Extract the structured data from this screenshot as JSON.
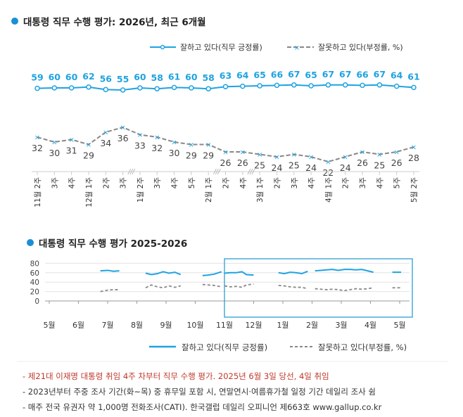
{
  "colors": {
    "approve": "#1fa3e0",
    "disapprove": "#888888",
    "bullet": "#1a8fd6",
    "note_red": "#c0392b",
    "box": "#2b9fd6"
  },
  "chart_data": [
    {
      "type": "line",
      "title": "대통령 직무 수행 평가: 2026년, 최근 6개월",
      "categories": [
        "11월 2주",
        "3주",
        "4주",
        "12월 1주",
        "2주",
        "3주",
        "1월 2주",
        "3주",
        "4주",
        "5주",
        "2월 1주",
        "2주",
        "4주",
        "3월 1주",
        "2주",
        "3주",
        "4주",
        "4월 1주",
        "2주",
        "3주",
        "4주",
        "5주",
        "5월 2주"
      ],
      "break_after_index": [
        5,
        10,
        12
      ],
      "series": [
        {
          "name": "잘하고 있다(직무 긍정률)",
          "values": [
            59,
            60,
            60,
            62,
            56,
            55,
            60,
            58,
            61,
            60,
            58,
            63,
            64,
            65,
            66,
            67,
            65,
            67,
            67,
            66,
            67,
            64,
            61
          ]
        },
        {
          "name": "잘못하고 있다(부정률, %)",
          "values": [
            32,
            30,
            31,
            29,
            34,
            36,
            33,
            32,
            30,
            29,
            29,
            26,
            26,
            25,
            24,
            25,
            24,
            22,
            24,
            26,
            25,
            26,
            28
          ]
        }
      ],
      "legend": {
        "approve_label": "잘하고 있다(직무 긍정률)",
        "disapprove_label": "잘못하고 있다(부정률, %)",
        "position": "top-right"
      }
    },
    {
      "type": "line",
      "title": "대통령 직무 수행 평가 2025-2026",
      "x_tick_labels": [
        "5월",
        "6월",
        "7월",
        "8월",
        "9월",
        "10월",
        "11월",
        "12월",
        "1월",
        "2월",
        "3월",
        "4월",
        "5월"
      ],
      "y_tick_labels": [
        "0",
        "20",
        "40",
        "60",
        "80"
      ],
      "ylim": [
        0,
        80
      ],
      "grid": true,
      "highlight_box": "11월 - 5월",
      "series": [
        {
          "name": "잘하고 있다(직무 긍정률)",
          "segments": [
            [
              [
                1.75,
                64
              ],
              [
                2.0,
                65
              ],
              [
                2.2,
                63
              ],
              [
                2.4,
                64
              ]
            ],
            [
              [
                3.3,
                59
              ],
              [
                3.5,
                56
              ],
              [
                3.7,
                58
              ],
              [
                3.9,
                62
              ],
              [
                4.1,
                59
              ],
              [
                4.3,
                61
              ],
              [
                4.5,
                56
              ]
            ],
            [
              [
                5.25,
                54
              ],
              [
                5.45,
                55
              ],
              [
                5.65,
                57
              ],
              [
                5.9,
                62
              ]
            ],
            [
              [
                6.0,
                59
              ],
              [
                6.2,
                60
              ],
              [
                6.4,
                60
              ],
              [
                6.6,
                62
              ],
              [
                6.75,
                56
              ],
              [
                7.0,
                55
              ]
            ],
            [
              [
                7.85,
                60
              ],
              [
                8.05,
                58
              ],
              [
                8.25,
                61
              ],
              [
                8.45,
                60
              ],
              [
                8.65,
                58
              ],
              [
                8.85,
                63
              ]
            ],
            [
              [
                9.1,
                64
              ],
              [
                9.3,
                65
              ],
              [
                9.5,
                66
              ],
              [
                9.7,
                67
              ],
              [
                9.9,
                65
              ],
              [
                10.1,
                67
              ],
              [
                10.3,
                67
              ],
              [
                10.5,
                66
              ],
              [
                10.7,
                67
              ],
              [
                10.9,
                64
              ],
              [
                11.1,
                61
              ]
            ],
            [
              [
                11.75,
                61
              ],
              [
                12.05,
                61
              ]
            ]
          ]
        },
        {
          "name": "잘못하고 있다(부정률, %)",
          "segments": [
            [
              [
                1.75,
                20
              ],
              [
                2.0,
                23
              ],
              [
                2.2,
                24
              ],
              [
                2.4,
                24
              ]
            ],
            [
              [
                3.3,
                28
              ],
              [
                3.5,
                34
              ],
              [
                3.7,
                30
              ],
              [
                3.9,
                28
              ],
              [
                4.1,
                32
              ],
              [
                4.3,
                29
              ],
              [
                4.5,
                32
              ]
            ],
            [
              [
                5.25,
                35
              ],
              [
                5.45,
                34
              ],
              [
                5.65,
                33
              ],
              [
                5.9,
                30
              ]
            ],
            [
              [
                6.0,
                32
              ],
              [
                6.2,
                30
              ],
              [
                6.4,
                31
              ],
              [
                6.6,
                29
              ],
              [
                6.75,
                34
              ],
              [
                7.0,
                36
              ]
            ],
            [
              [
                7.85,
                33
              ],
              [
                8.05,
                32
              ],
              [
                8.25,
                30
              ],
              [
                8.45,
                29
              ],
              [
                8.65,
                29
              ],
              [
                8.85,
                26
              ]
            ],
            [
              [
                9.1,
                26
              ],
              [
                9.3,
                25
              ],
              [
                9.5,
                24
              ],
              [
                9.7,
                25
              ],
              [
                9.9,
                24
              ],
              [
                10.1,
                22
              ],
              [
                10.3,
                24
              ],
              [
                10.5,
                26
              ],
              [
                10.7,
                25
              ],
              [
                10.9,
                26
              ],
              [
                11.1,
                28
              ]
            ],
            [
              [
                11.75,
                28
              ],
              [
                12.05,
                28
              ]
            ]
          ]
        }
      ],
      "legend": {
        "approve_label": "잘하고 있다(직무 긍정률)",
        "disapprove_label": "잘못하고 있다(부정률, %)",
        "position": "bottom"
      }
    }
  ],
  "notes": [
    "- 제21대 이재명 대통령 취임 4주 차부터 직무 수행 평가. 2025년 6월 3일 당선, 4일 취임",
    "- 2023년부터 주중 조사 기간(화~목) 중 휴무일 포함 시, 연말연시·여름휴가철 일정 기간 데일리 조사 쉼",
    "- 매주 전국 유권자 약 1,000명 전화조사(CATI). 한국갤럽 데일리 오피니언 제663호 www.gallup.co.kr"
  ]
}
